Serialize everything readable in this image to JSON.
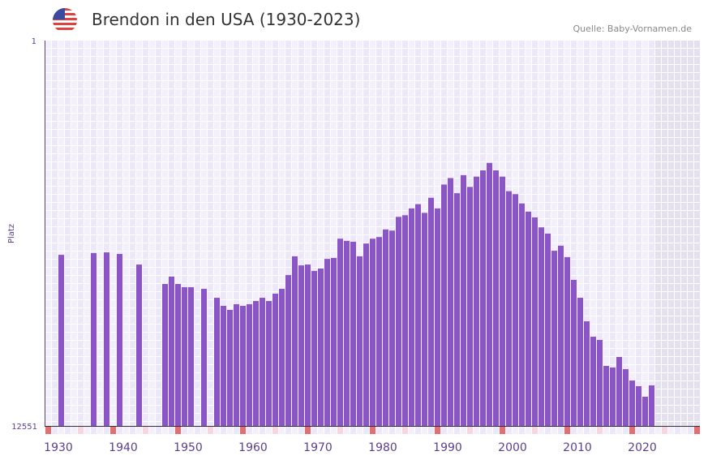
{
  "header": {
    "title": "Brendon in den USA (1930-2023)",
    "source": "Quelle: Baby-Vornamen.de",
    "flag_icon": "us-flag-icon"
  },
  "colors": {
    "bar": "#8b55c7",
    "axis_text": "#5b3f8f",
    "grid_a": "#f3effb",
    "grid_b": "#ede8f8",
    "future": "#e4e0ee",
    "marker_decade": "#e07074",
    "marker_half": "#f6d6de"
  },
  "chart_data": {
    "type": "bar",
    "title": "Brendon in den USA (1930-2023)",
    "xlabel": "",
    "ylabel": "Platz",
    "yscale": "log",
    "yreversed": true,
    "ylim": [
      1,
      12551
    ],
    "ytick_labels": [
      "1",
      "12551"
    ],
    "xlim": [
      1928,
      2028
    ],
    "xtick_labels": [
      "1930",
      "1940",
      "1950",
      "1960",
      "1970",
      "1980",
      "1990",
      "2000",
      "2010",
      "2020"
    ],
    "grid": true,
    "start_year": 1930,
    "values": [
      190,
      null,
      null,
      null,
      null,
      182,
      null,
      179,
      null,
      186,
      null,
      null,
      241,
      null,
      null,
      null,
      388,
      324,
      388,
      420,
      420,
      null,
      437,
      null,
      544,
      663,
      732,
      637,
      663,
      637,
      589,
      544,
      589,
      492,
      437,
      312,
      197,
      246,
      241,
      282,
      266,
      210,
      205,
      128,
      135,
      138,
      197,
      144,
      128,
      123,
      102,
      105,
      75,
      72,
      61,
      55,
      68,
      47,
      61,
      34,
      29,
      42,
      27,
      36,
      28,
      24,
      20,
      24,
      28,
      40,
      43,
      54,
      66,
      76,
      97,
      113,
      172,
      152,
      201,
      351,
      544,
      968,
      1412,
      1528,
      2885,
      3000,
      2318,
      3126,
      4130,
      4742,
      6140,
      4650
    ]
  }
}
